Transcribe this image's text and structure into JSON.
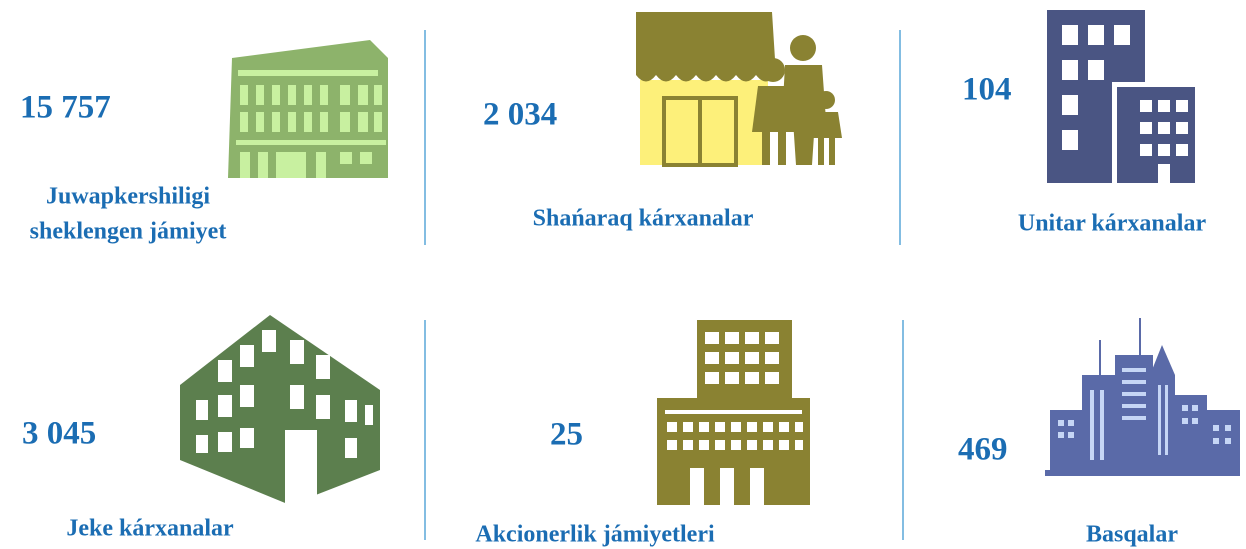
{
  "items": [
    {
      "value": "15 757",
      "label": [
        "Juwapkershiligi",
        "sheklengen jámiyet"
      ]
    },
    {
      "value": "2 034",
      "label": [
        "Shańaraq kárxanalar"
      ]
    },
    {
      "value": "104",
      "label": [
        "Unitar kárxanalar"
      ]
    },
    {
      "value": "3 045",
      "label": [
        "Jeke kárxanalar"
      ]
    },
    {
      "value": "25",
      "label": [
        "Akcionerlik jámiyetleri"
      ]
    },
    {
      "value": "469",
      "label": [
        "Basqalar"
      ]
    }
  ]
}
